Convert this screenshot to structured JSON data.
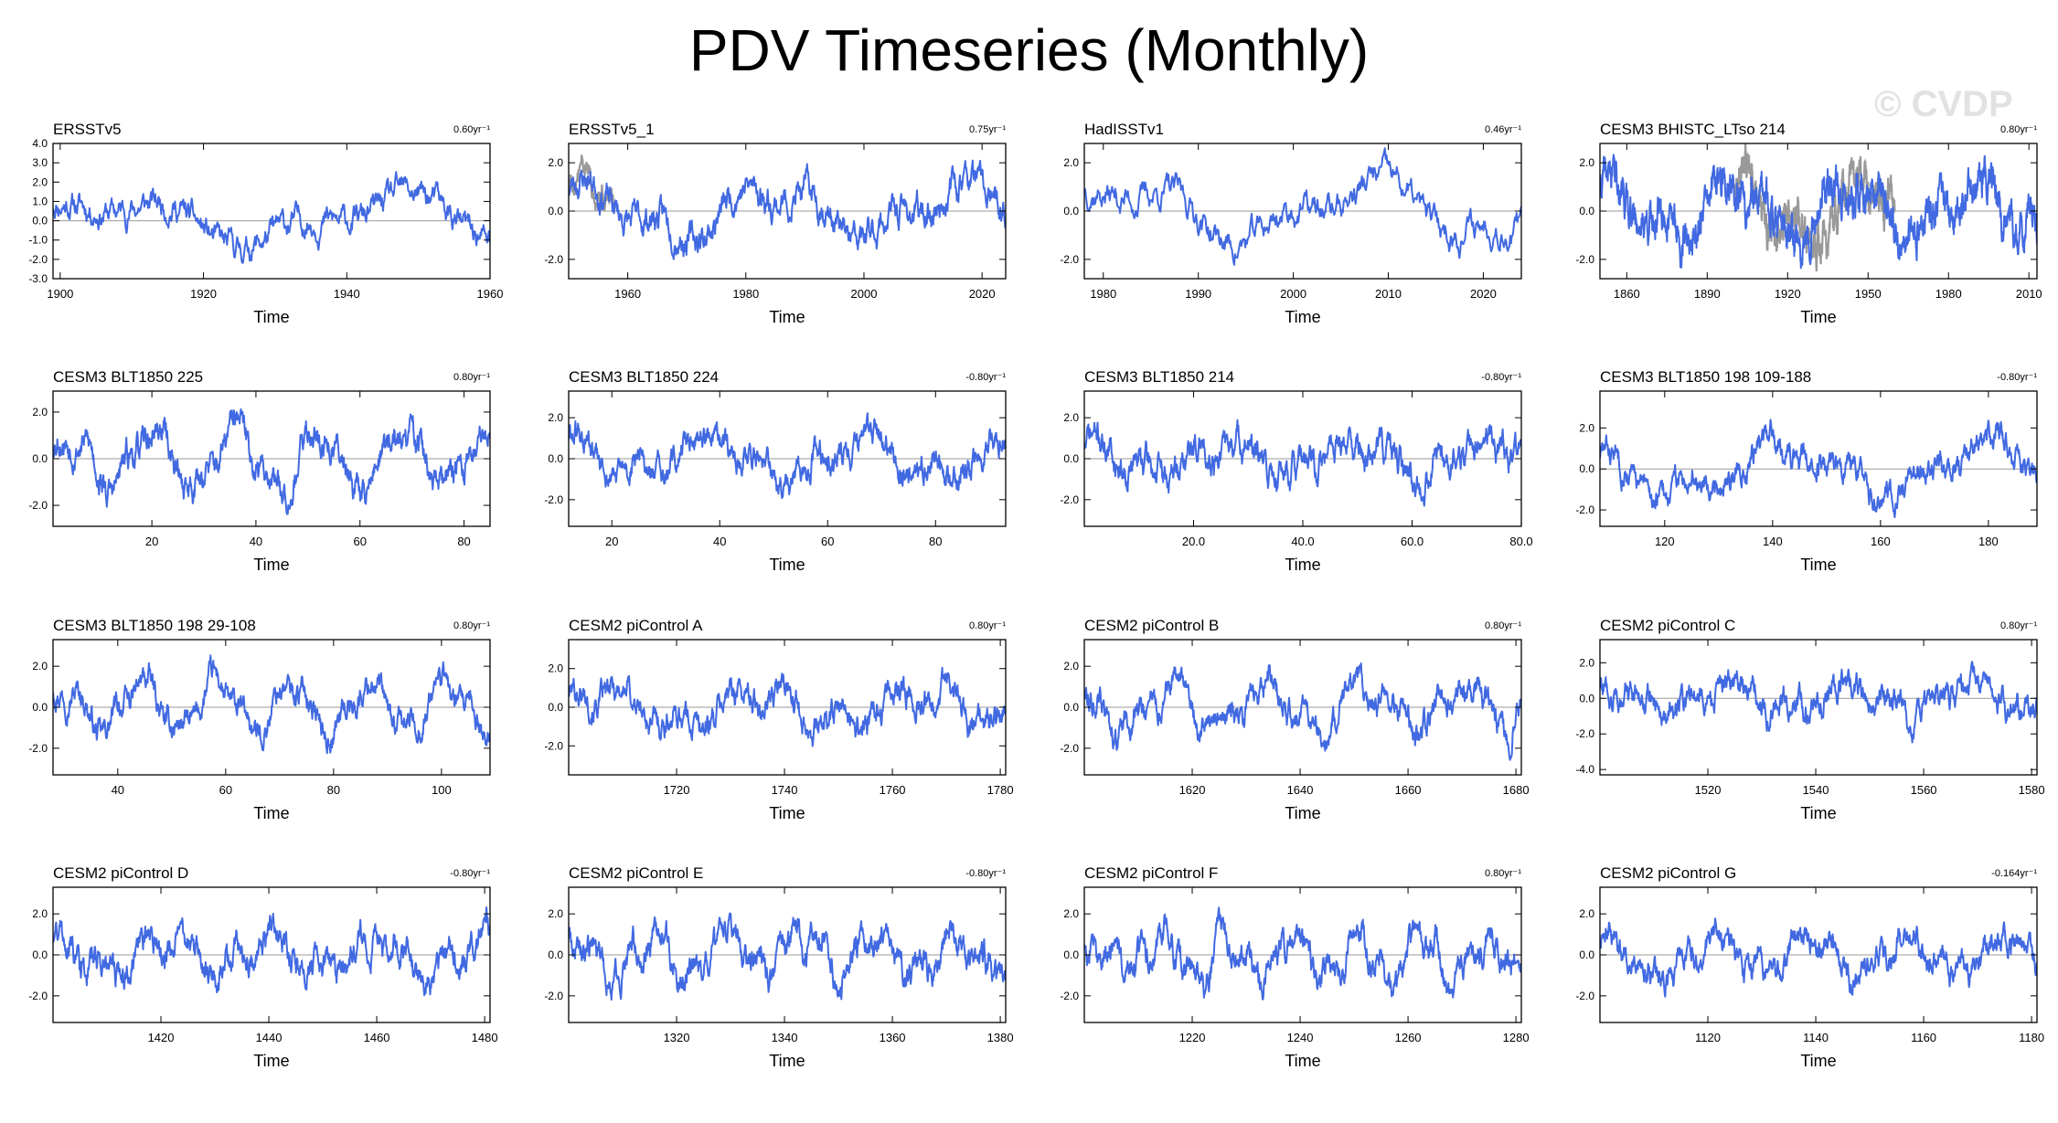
{
  "page": {
    "title": "PDV Timeseries (Monthly)",
    "watermark": "© CVDP"
  },
  "style": {
    "series_color": "#4169e1",
    "overlay_color": "#999999",
    "zero_line_color": "#9a9a9a",
    "axis_color": "#000000"
  },
  "chart_data": [
    {
      "type": "line",
      "title": "ERSSTv5",
      "trend": "0.60yr⁻¹",
      "xlabel": "Time",
      "xlim": [
        1899,
        1960
      ],
      "xticks": [
        1900,
        1920,
        1940,
        1960
      ],
      "xtick_labels": [
        "1900",
        "1920",
        "1940",
        "1960"
      ],
      "ylim": [
        -3,
        4
      ],
      "yticks": [
        -3,
        -2,
        -1,
        0,
        1,
        2,
        3,
        4
      ],
      "ytick_labels": [
        "-3.0",
        "-2.0",
        "-1.0",
        "0.0",
        "1.0",
        "2.0",
        "3.0",
        "4.0"
      ],
      "seed": 11,
      "noise": 0.75,
      "components": [
        [
          40,
          1.0,
          0.3
        ],
        [
          17,
          0.55,
          1.7
        ]
      ],
      "overlay": null
    },
    {
      "type": "line",
      "title": "ERSSTv5_1",
      "trend": "0.75yr⁻¹",
      "xlabel": "Time",
      "xlim": [
        1950,
        2024
      ],
      "xticks": [
        1960,
        1980,
        2000,
        2020
      ],
      "xtick_labels": [
        "1960",
        "1980",
        "2000",
        "2020"
      ],
      "ylim": [
        -2.8,
        2.8
      ],
      "yticks": [
        -2,
        0,
        2
      ],
      "ytick_labels": [
        "-2.0",
        "0.0",
        "2.0"
      ],
      "seed": 23,
      "noise": 0.7,
      "components": [
        [
          32,
          0.9,
          1.1
        ],
        [
          13,
          0.5,
          0.2
        ]
      ],
      "overlay": {
        "xlim": [
          1950,
          1958
        ],
        "seed": 5
      }
    },
    {
      "type": "line",
      "title": "HadISSTv1",
      "trend": "0.46yr⁻¹",
      "xlabel": "Time",
      "xlim": [
        1978,
        2024
      ],
      "xticks": [
        1980,
        1990,
        2000,
        2010,
        2020
      ],
      "xtick_labels": [
        "1980",
        "1990",
        "2000",
        "2010",
        "2020"
      ],
      "ylim": [
        -2.8,
        2.8
      ],
      "yticks": [
        -2,
        0,
        2
      ],
      "ytick_labels": [
        "-2.0",
        "0.0",
        "2.0"
      ],
      "seed": 37,
      "noise": 0.7,
      "components": [
        [
          26,
          1.0,
          0.6
        ],
        [
          11,
          0.5,
          2.2
        ]
      ],
      "overlay": null
    },
    {
      "type": "line",
      "title": "CESM3 BHISTC_LTso 214",
      "trend": "0.80yr⁻¹",
      "xlabel": "Time",
      "xlim": [
        1850,
        2013
      ],
      "xticks": [
        1860,
        1890,
        1920,
        1950,
        1980,
        2010
      ],
      "xtick_labels": [
        "1860",
        "1890",
        "1920",
        "1950",
        "1980",
        "2010"
      ],
      "ylim": [
        -2.8,
        2.8
      ],
      "yticks": [
        -2,
        0,
        2
      ],
      "ytick_labels": [
        "-2.0",
        "0.0",
        "2.0"
      ],
      "seed": 41,
      "noise": 0.75,
      "components": [
        [
          45,
          0.9,
          0.9
        ],
        [
          20,
          0.6,
          0.4
        ]
      ],
      "overlay": {
        "xlim": [
          1900,
          1960
        ],
        "seed": 9
      }
    },
    {
      "type": "line",
      "title": "CESM3 BLT1850 225",
      "trend": "0.80yr⁻¹",
      "xlabel": "Time",
      "xlim": [
        1,
        85
      ],
      "xticks": [
        20,
        40,
        60,
        80
      ],
      "xtick_labels": [
        "20",
        "40",
        "60",
        "80"
      ],
      "ylim": [
        -2.9,
        2.9
      ],
      "yticks": [
        -2,
        0,
        2
      ],
      "ytick_labels": [
        "-2.0",
        "0.0",
        "2.0"
      ],
      "seed": 53,
      "noise": 0.7,
      "components": [
        [
          16,
          1.1,
          0.3
        ],
        [
          7,
          0.4,
          1.4
        ]
      ],
      "overlay": null
    },
    {
      "type": "line",
      "title": "CESM3 BLT1850 224",
      "trend": "-0.80yr⁻¹",
      "xlabel": "Time",
      "xlim": [
        12,
        93
      ],
      "xticks": [
        20,
        40,
        60,
        80
      ],
      "xtick_labels": [
        "20",
        "40",
        "60",
        "80"
      ],
      "ylim": [
        -3.3,
        3.3
      ],
      "yticks": [
        -2,
        0,
        2
      ],
      "ytick_labels": [
        "-2.0",
        "0.0",
        "2.0"
      ],
      "seed": 61,
      "noise": 0.75,
      "components": [
        [
          28,
          0.9,
          2.0
        ],
        [
          11,
          0.5,
          0.7
        ]
      ],
      "overlay": null
    },
    {
      "type": "line",
      "title": "CESM3 BLT1850 214",
      "trend": "-0.80yr⁻¹",
      "xlabel": "Time",
      "xlim": [
        0,
        80
      ],
      "xticks": [
        20,
        40,
        60,
        80
      ],
      "xtick_labels": [
        "20.0",
        "40.0",
        "60.0",
        "80.0"
      ],
      "ylim": [
        -3.3,
        3.3
      ],
      "yticks": [
        -2,
        0,
        2
      ],
      "ytick_labels": [
        "-2.0",
        "0.0",
        "2.0"
      ],
      "seed": 71,
      "noise": 0.85,
      "components": [
        [
          24,
          0.7,
          1.2
        ],
        [
          9,
          0.4,
          0.1
        ]
      ],
      "overlay": null
    },
    {
      "type": "line",
      "title": "CESM3 BLT1850 198 109-188",
      "trend": "-0.80yr⁻¹",
      "xlabel": "Time",
      "xlim": [
        108,
        189
      ],
      "xticks": [
        120,
        140,
        160,
        180
      ],
      "xtick_labels": [
        "120",
        "140",
        "160",
        "180"
      ],
      "ylim": [
        -2.8,
        3.8
      ],
      "yticks": [
        -2,
        0,
        2
      ],
      "ytick_labels": [
        "-2.0",
        "0.0",
        "2.0"
      ],
      "seed": 83,
      "noise": 0.7,
      "components": [
        [
          40,
          1.0,
          2.6
        ],
        [
          14,
          0.6,
          0.3
        ]
      ],
      "overlay": null
    },
    {
      "type": "line",
      "title": "CESM3 BLT1850 198 29-108",
      "trend": "0.80yr⁻¹",
      "xlabel": "Time",
      "xlim": [
        28,
        109
      ],
      "xticks": [
        40,
        60,
        80,
        100
      ],
      "xtick_labels": [
        "40",
        "60",
        "80",
        "100"
      ],
      "ylim": [
        -3.3,
        3.3
      ],
      "yticks": [
        -2,
        0,
        2
      ],
      "ytick_labels": [
        "-2.0",
        "0.0",
        "2.0"
      ],
      "seed": 97,
      "noise": 0.7,
      "components": [
        [
          14,
          1.1,
          0.5
        ],
        [
          6,
          0.4,
          1.9
        ]
      ],
      "overlay": null
    },
    {
      "type": "line",
      "title": "CESM2 piControl A",
      "trend": "0.80yr⁻¹",
      "xlabel": "Time",
      "xlim": [
        1700,
        1781
      ],
      "xticks": [
        1720,
        1740,
        1760,
        1780
      ],
      "xtick_labels": [
        "1720",
        "1740",
        "1760",
        "1780"
      ],
      "ylim": [
        -3.5,
        3.5
      ],
      "yticks": [
        -2,
        0,
        2
      ],
      "ytick_labels": [
        "-2.0",
        "0.0",
        "2.0"
      ],
      "seed": 101,
      "noise": 0.8,
      "components": [
        [
          30,
          0.8,
          0.4
        ],
        [
          10,
          0.5,
          1.3
        ]
      ],
      "overlay": null
    },
    {
      "type": "line",
      "title": "CESM2 piControl B",
      "trend": "0.80yr⁻¹",
      "xlabel": "Time",
      "xlim": [
        1600,
        1681
      ],
      "xticks": [
        1620,
        1640,
        1660,
        1680
      ],
      "xtick_labels": [
        "1620",
        "1640",
        "1660",
        "1680"
      ],
      "ylim": [
        -3.3,
        3.3
      ],
      "yticks": [
        -2,
        0,
        2
      ],
      "ytick_labels": [
        "-2.0",
        "0.0",
        "2.0"
      ],
      "seed": 113,
      "noise": 0.75,
      "components": [
        [
          18,
          0.9,
          2.3
        ],
        [
          8,
          0.5,
          0.2
        ]
      ],
      "overlay": null
    },
    {
      "type": "line",
      "title": "CESM2 piControl C",
      "trend": "0.80yr⁻¹",
      "xlabel": "Time",
      "xlim": [
        1500,
        1581
      ],
      "xticks": [
        1520,
        1540,
        1560,
        1580
      ],
      "xtick_labels": [
        "1520",
        "1540",
        "1560",
        "1580"
      ],
      "ylim": [
        -4.3,
        3.3
      ],
      "yticks": [
        -4,
        -2,
        0,
        2
      ],
      "ytick_labels": [
        "-4.0",
        "-2.0",
        "0.0",
        "2.0"
      ],
      "seed": 127,
      "noise": 0.85,
      "components": [
        [
          22,
          0.6,
          0.8
        ],
        [
          9,
          0.4,
          2.0
        ]
      ],
      "overlay": null
    },
    {
      "type": "line",
      "title": "CESM2 piControl D",
      "trend": "-0.80yr⁻¹",
      "xlabel": "Time",
      "xlim": [
        1400,
        1481
      ],
      "xticks": [
        1420,
        1440,
        1460,
        1480
      ],
      "xtick_labels": [
        "1420",
        "1440",
        "1460",
        "1480"
      ],
      "ylim": [
        -3.3,
        3.3
      ],
      "yticks": [
        -2,
        0,
        2
      ],
      "ytick_labels": [
        "-2.0",
        "0.0",
        "2.0"
      ],
      "seed": 131,
      "noise": 0.8,
      "components": [
        [
          20,
          0.8,
          1.5
        ],
        [
          8,
          0.5,
          0.6
        ]
      ],
      "overlay": null
    },
    {
      "type": "line",
      "title": "CESM2 piControl E",
      "trend": "-0.80yr⁻¹",
      "xlabel": "Time",
      "xlim": [
        1300,
        1381
      ],
      "xticks": [
        1320,
        1340,
        1360,
        1380
      ],
      "xtick_labels": [
        "1320",
        "1340",
        "1360",
        "1380"
      ],
      "ylim": [
        -3.3,
        3.3
      ],
      "yticks": [
        -2,
        0,
        2
      ],
      "ytick_labels": [
        "-2.0",
        "0.0",
        "2.0"
      ],
      "seed": 149,
      "noise": 0.8,
      "components": [
        [
          14,
          0.8,
          0.9
        ],
        [
          6,
          0.5,
          2.4
        ]
      ],
      "overlay": null
    },
    {
      "type": "line",
      "title": "CESM2 piControl F",
      "trend": "0.80yr⁻¹",
      "xlabel": "Time",
      "xlim": [
        1200,
        1281
      ],
      "xticks": [
        1220,
        1240,
        1260,
        1280
      ],
      "xtick_labels": [
        "1220",
        "1240",
        "1260",
        "1280"
      ],
      "ylim": [
        -3.3,
        3.3
      ],
      "yticks": [
        -2,
        0,
        2
      ],
      "ytick_labels": [
        "-2.0",
        "0.0",
        "2.0"
      ],
      "seed": 157,
      "noise": 0.8,
      "components": [
        [
          12,
          0.8,
          0.1
        ],
        [
          5,
          0.5,
          1.2
        ]
      ],
      "overlay": null
    },
    {
      "type": "line",
      "title": "CESM2 piControl G",
      "trend": "-0.164yr⁻¹",
      "xlabel": "Time",
      "xlim": [
        1100,
        1181
      ],
      "xticks": [
        1120,
        1140,
        1160,
        1180
      ],
      "xtick_labels": [
        "1120",
        "1140",
        "1160",
        "1180"
      ],
      "ylim": [
        -3.3,
        3.3
      ],
      "yticks": [
        -2,
        0,
        2
      ],
      "ytick_labels": [
        "-2.0",
        "0.0",
        "2.0"
      ],
      "seed": 167,
      "noise": 0.75,
      "components": [
        [
          18,
          0.9,
          0.7
        ],
        [
          7,
          0.4,
          0.3
        ]
      ],
      "overlay": null
    }
  ]
}
